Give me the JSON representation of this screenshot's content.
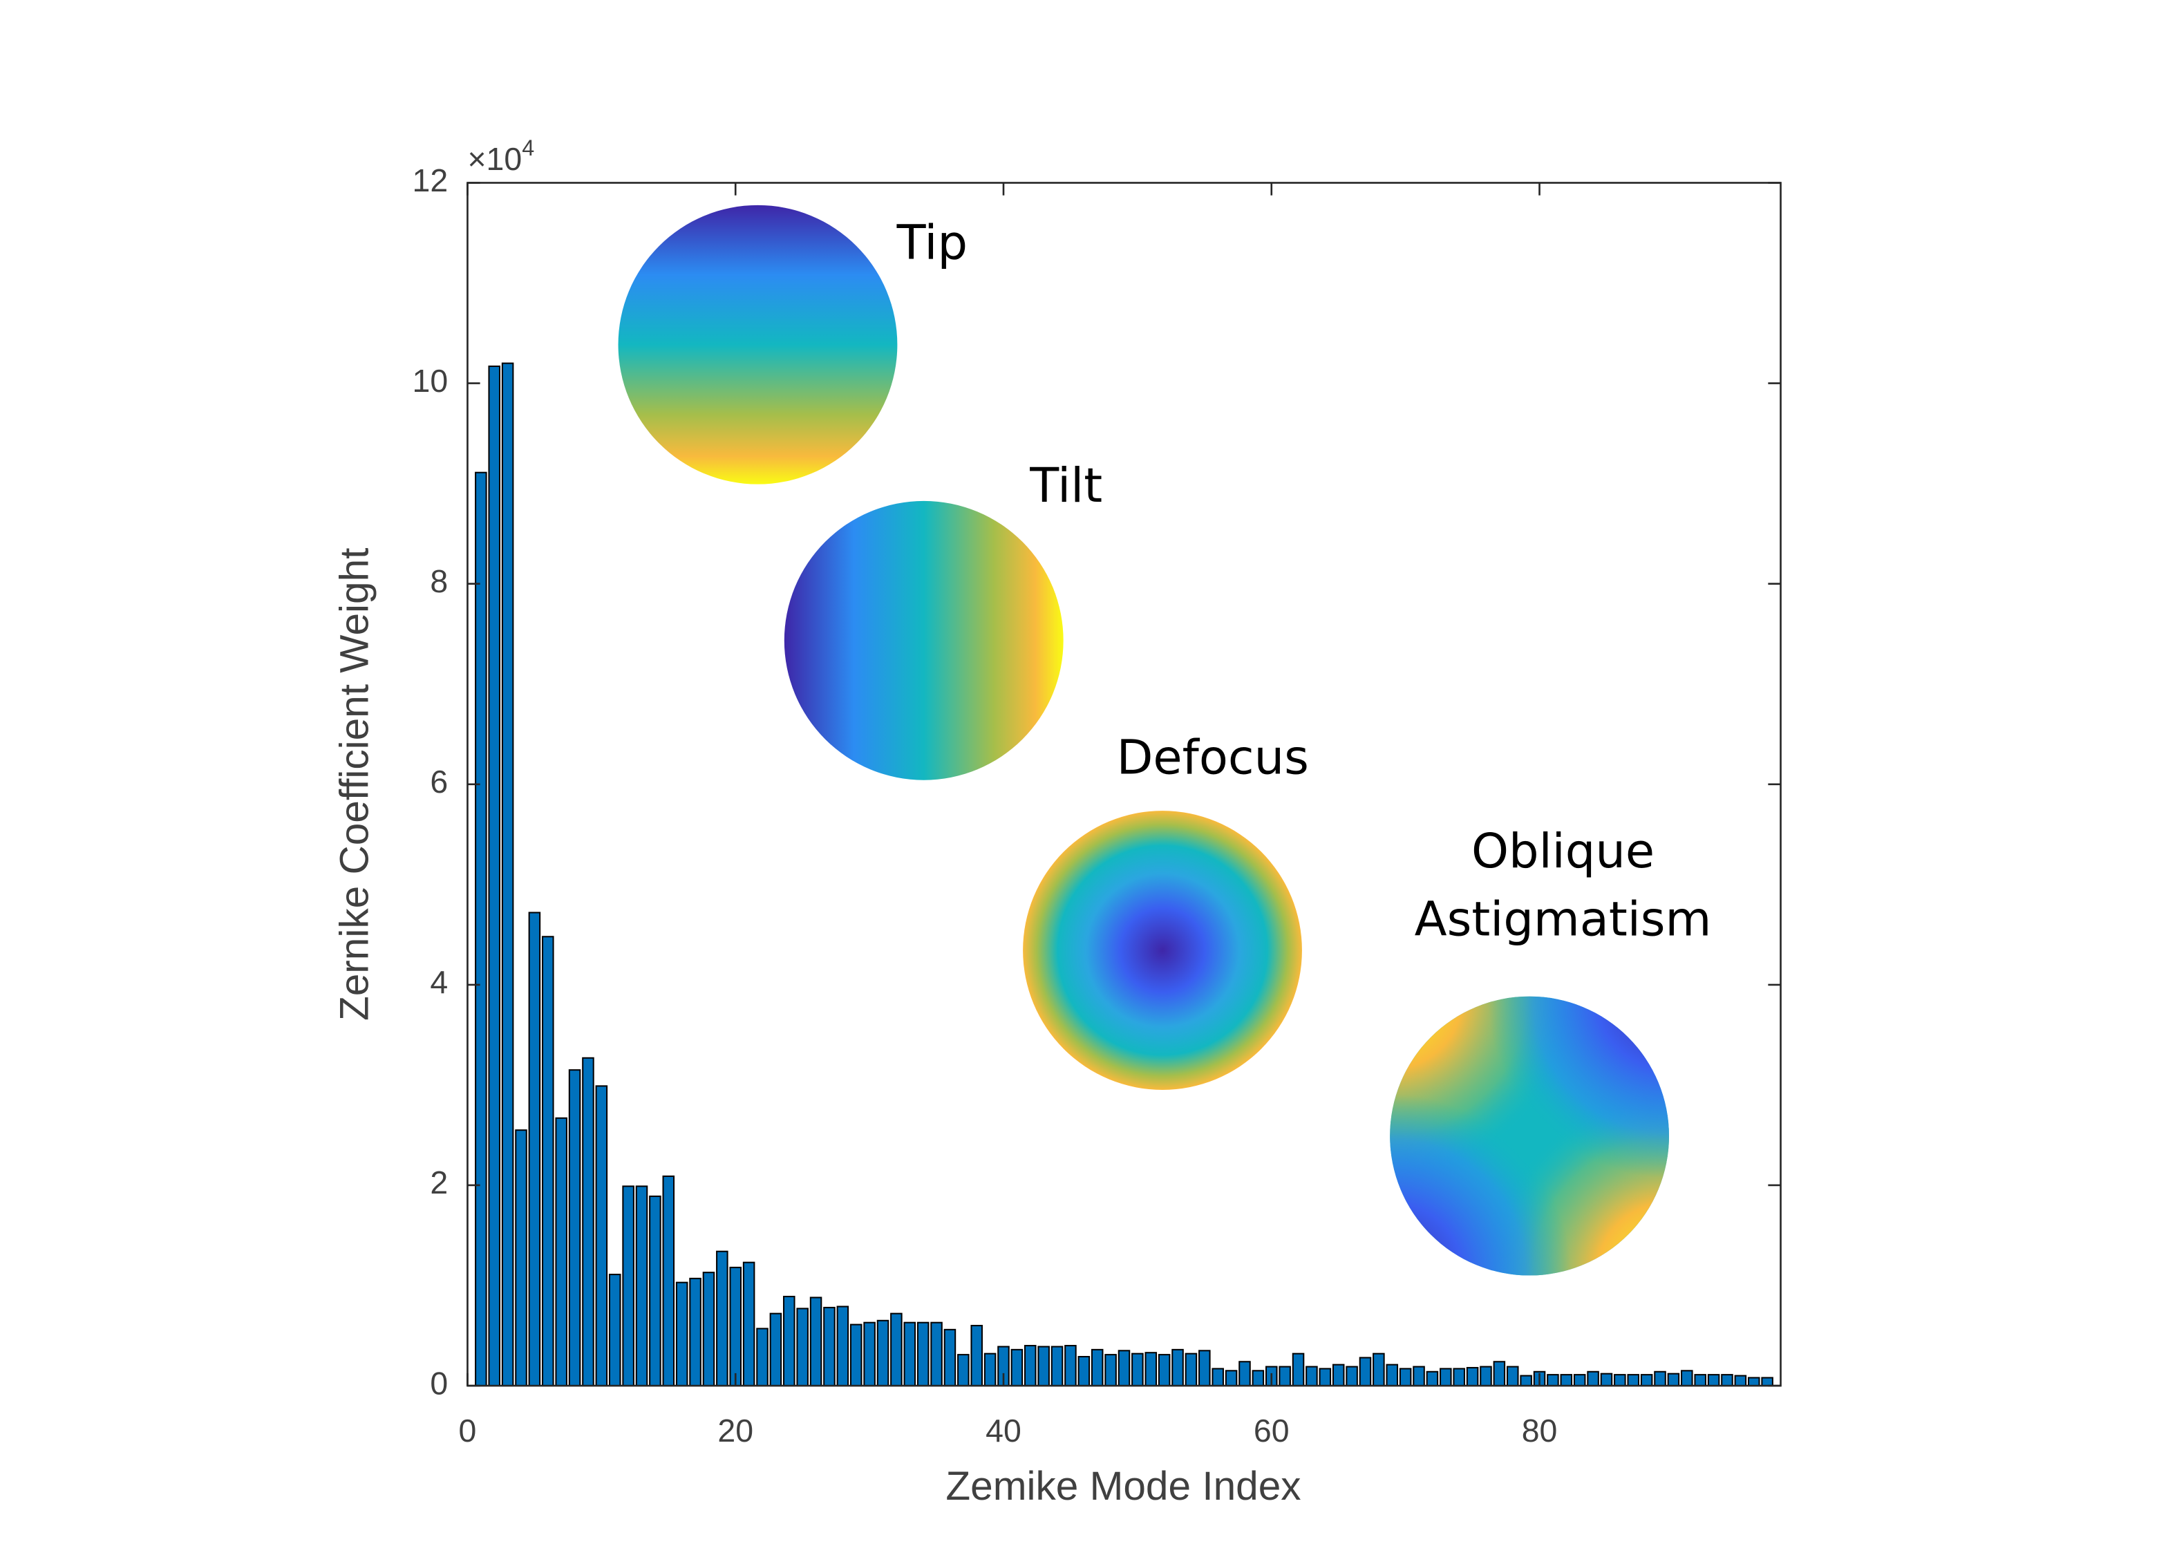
{
  "chart_data": {
    "type": "bar",
    "xlabel": "Zemike Mode Index",
    "ylabel": "Zernike Coefficient Weight",
    "y_multiplier": {
      "base": "×10",
      "exponent": "4"
    },
    "color": "#0072bd",
    "edge_color": "#000000",
    "xlim": [
      0,
      98
    ],
    "xticks": [
      0,
      20,
      40,
      60,
      80
    ],
    "ylim": [
      0,
      12
    ],
    "yticks": [
      0,
      2,
      4,
      6,
      8,
      10,
      12
    ],
    "x": [
      1,
      2,
      3,
      4,
      5,
      6,
      7,
      8,
      9,
      10,
      11,
      12,
      13,
      14,
      15,
      16,
      17,
      18,
      19,
      20,
      21,
      22,
      23,
      24,
      25,
      26,
      27,
      28,
      29,
      30,
      31,
      32,
      33,
      34,
      35,
      36,
      37,
      38,
      39,
      40,
      41,
      42,
      43,
      44,
      45,
      46,
      47,
      48,
      49,
      50,
      51,
      52,
      53,
      54,
      55,
      56,
      57,
      58,
      59,
      60,
      61,
      62,
      63,
      64,
      65,
      66,
      67,
      68,
      69,
      70,
      71,
      72,
      73,
      74,
      75,
      76,
      77,
      78,
      79,
      80,
      81,
      82,
      83,
      84,
      85,
      86,
      87,
      88,
      89,
      90,
      91,
      92,
      93,
      94,
      95,
      96,
      97
    ],
    "values": [
      9.11,
      10.17,
      10.2,
      2.55,
      4.72,
      4.48,
      2.67,
      3.15,
      3.27,
      2.99,
      1.11,
      1.99,
      1.99,
      1.89,
      2.09,
      1.03,
      1.07,
      1.13,
      1.34,
      1.18,
      1.23,
      0.57,
      0.72,
      0.89,
      0.77,
      0.88,
      0.78,
      0.79,
      0.61,
      0.63,
      0.65,
      0.72,
      0.63,
      0.63,
      0.63,
      0.56,
      0.31,
      0.6,
      0.32,
      0.39,
      0.36,
      0.4,
      0.39,
      0.39,
      0.4,
      0.29,
      0.36,
      0.31,
      0.35,
      0.32,
      0.33,
      0.31,
      0.36,
      0.32,
      0.35,
      0.17,
      0.15,
      0.24,
      0.15,
      0.19,
      0.19,
      0.32,
      0.19,
      0.17,
      0.21,
      0.19,
      0.28,
      0.32,
      0.21,
      0.17,
      0.19,
      0.14,
      0.17,
      0.17,
      0.18,
      0.19,
      0.24,
      0.19,
      0.1,
      0.14,
      0.11,
      0.11,
      0.11,
      0.14,
      0.12,
      0.11,
      0.11,
      0.11,
      0.14,
      0.12,
      0.15,
      0.11,
      0.11,
      0.11,
      0.1,
      0.08,
      0.08
    ],
    "annotations": [
      {
        "lines": [
          "Tip"
        ]
      },
      {
        "lines": [
          "Tilt"
        ]
      },
      {
        "lines": [
          "Defocus"
        ]
      },
      {
        "lines": [
          "Oblique",
          "Astigmatism"
        ]
      }
    ]
  }
}
